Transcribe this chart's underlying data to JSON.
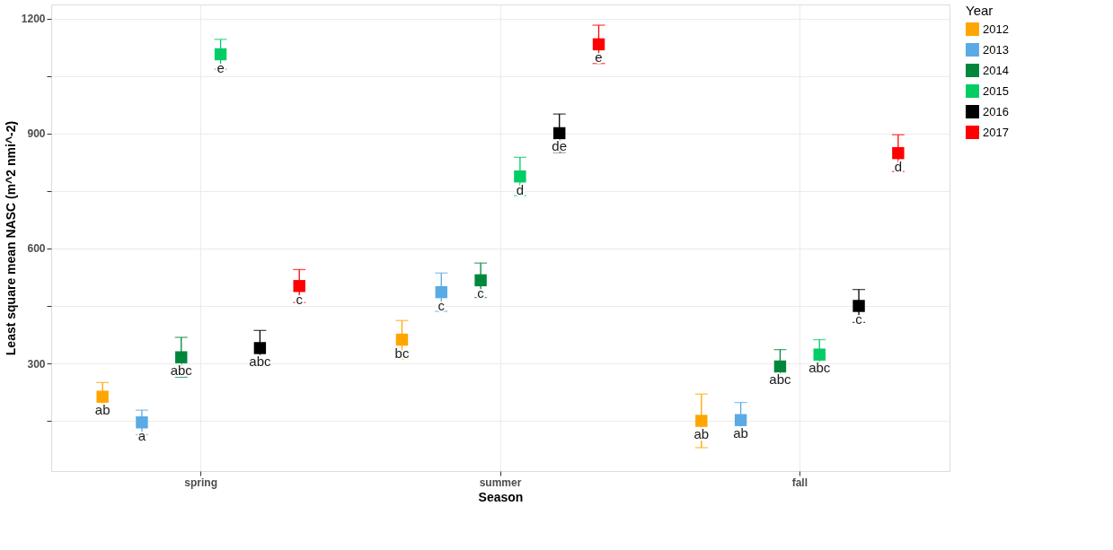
{
  "chart_data": {
    "type": "scatter",
    "xlabel": "Season",
    "ylabel": "Least square mean NASC (m^2 nmi^-2)",
    "legend_title": "Year",
    "categories": [
      "spring",
      "summer",
      "fall"
    ],
    "series": [
      {
        "name": "2012",
        "color": "#ffa500",
        "values": [
          213,
          362,
          150
        ],
        "errors": [
          37,
          50,
          70
        ],
        "value_labels": [
          "ab",
          "bc",
          "ab"
        ]
      },
      {
        "name": "2013",
        "color": "#5aaae6",
        "values": [
          146,
          486,
          152
        ],
        "errors": [
          32,
          50,
          46
        ],
        "value_labels": [
          "a",
          "c",
          "ab"
        ]
      },
      {
        "name": "2014",
        "color": "#00873c",
        "values": [
          316,
          517,
          292
        ],
        "errors": [
          52,
          45,
          44
        ],
        "value_labels": [
          "abc",
          "c",
          "abc"
        ]
      },
      {
        "name": "2015",
        "color": "#00cd64",
        "values": [
          1107,
          788,
          323
        ],
        "errors": [
          39,
          50,
          39
        ],
        "value_labels": [
          "e",
          "d",
          "abc"
        ]
      },
      {
        "name": "2016",
        "color": "#000000",
        "values": [
          340,
          901,
          450
        ],
        "errors": [
          46,
          50,
          43
        ],
        "value_labels": [
          "abc",
          "de",
          "c"
        ]
      },
      {
        "name": "2017",
        "color": "#ff0000",
        "values": [
          502,
          1133,
          849
        ],
        "errors": [
          43,
          50,
          48
        ],
        "value_labels": [
          "c",
          "e",
          "d"
        ]
      }
    ],
    "ylim": [
      19,
      1237
    ],
    "yticks": [
      {
        "value": 150,
        "label": null
      },
      300,
      {
        "value": 450,
        "label": null
      },
      600,
      {
        "value": 750,
        "label": null
      },
      900,
      {
        "value": 1050,
        "label": null
      },
      1200
    ],
    "marker": "square",
    "legend": "right",
    "grid": true
  }
}
